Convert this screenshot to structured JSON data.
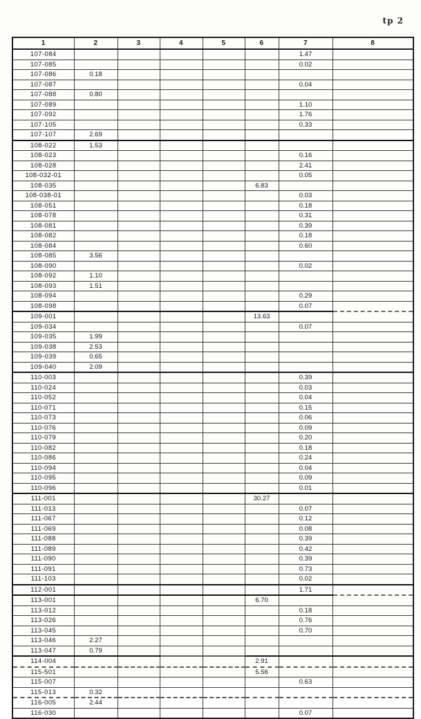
{
  "page": {
    "label": "tp 2"
  },
  "colors": {
    "background": "#ffffff",
    "border_dark": "#1f1f1f",
    "border_light": "#3c3c3c",
    "text": "#171717"
  },
  "table": {
    "headers": [
      "1",
      "2",
      "3",
      "4",
      "5",
      "6",
      "7",
      "8"
    ],
    "rows": [
      {
        "cols": [
          "107-084",
          "",
          "",
          "",
          "",
          "",
          "1.47",
          ""
        ]
      },
      {
        "cols": [
          "107-085",
          "",
          "",
          "",
          "",
          "",
          "0.02",
          ""
        ]
      },
      {
        "cols": [
          "107-086",
          "0.18",
          "",
          "",
          "",
          "",
          "",
          ""
        ]
      },
      {
        "cols": [
          "107-087",
          "",
          "",
          "",
          "",
          "",
          "0.04",
          ""
        ]
      },
      {
        "cols": [
          "107-088",
          "0.80",
          "",
          "",
          "",
          "",
          "",
          ""
        ]
      },
      {
        "cols": [
          "107-089",
          "",
          "",
          "",
          "",
          "",
          "1.10",
          ""
        ]
      },
      {
        "cols": [
          "107-092",
          "",
          "",
          "",
          "",
          "",
          "1.76",
          ""
        ]
      },
      {
        "cols": [
          "107-105",
          "",
          "",
          "",
          "",
          "",
          "0.33",
          ""
        ]
      },
      {
        "cols": [
          "107-107",
          "2.69",
          "",
          "",
          "",
          "",
          "",
          ""
        ]
      },
      {
        "cols": [
          "108-022",
          "1.53",
          "",
          "",
          "",
          "",
          "",
          ""
        ]
      },
      {
        "cols": [
          "108-023",
          "",
          "",
          "",
          "",
          "",
          "0.16",
          ""
        ]
      },
      {
        "cols": [
          "108-028",
          "",
          "",
          "",
          "",
          "",
          "2.41",
          ""
        ]
      },
      {
        "cols": [
          "108-032-01",
          "",
          "",
          "",
          "",
          "",
          "0.05",
          ""
        ]
      },
      {
        "cols": [
          "108-035",
          "",
          "",
          "",
          "",
          "6.83",
          "",
          ""
        ]
      },
      {
        "cols": [
          "108-038-01",
          "",
          "",
          "",
          "",
          "",
          "0.03",
          ""
        ]
      },
      {
        "cols": [
          "108-051",
          "",
          "",
          "",
          "",
          "",
          "0.18",
          ""
        ]
      },
      {
        "cols": [
          "108-078",
          "",
          "",
          "",
          "",
          "",
          "0.31",
          ""
        ]
      },
      {
        "cols": [
          "108-081",
          "",
          "",
          "",
          "",
          "",
          "0.39",
          ""
        ]
      },
      {
        "cols": [
          "108-082",
          "",
          "",
          "",
          "",
          "",
          "0.18",
          ""
        ]
      },
      {
        "cols": [
          "108-084",
          "",
          "",
          "",
          "",
          "",
          "0.60",
          ""
        ]
      },
      {
        "cols": [
          "108-085",
          "3.56",
          "",
          "",
          "",
          "",
          "",
          ""
        ]
      },
      {
        "cols": [
          "108-090",
          "",
          "",
          "",
          "",
          "",
          "0.02",
          ""
        ]
      },
      {
        "cols": [
          "108-092",
          "1.10",
          "",
          "",
          "",
          "",
          "",
          ""
        ]
      },
      {
        "cols": [
          "108-093",
          "1.51",
          "",
          "",
          "",
          "",
          "",
          ""
        ]
      },
      {
        "cols": [
          "108-094",
          "",
          "",
          "",
          "",
          "",
          "0.29",
          ""
        ]
      },
      {
        "cols": [
          "108-098",
          "",
          "",
          "",
          "",
          "",
          "0.07",
          ""
        ]
      },
      {
        "cols": [
          "109-001",
          "",
          "",
          "",
          "",
          "13.63",
          "",
          ""
        ]
      },
      {
        "cols": [
          "109-034",
          "",
          "",
          "",
          "",
          "",
          "0.07",
          ""
        ]
      },
      {
        "cols": [
          "109-035",
          "1.99",
          "",
          "",
          "",
          "",
          "",
          ""
        ]
      },
      {
        "cols": [
          "109-038",
          "2.53",
          "",
          "",
          "",
          "",
          "",
          ""
        ]
      },
      {
        "cols": [
          "109-039",
          "0.65",
          "",
          "",
          "",
          "",
          "",
          ""
        ]
      },
      {
        "cols": [
          "109-040",
          "2.09",
          "",
          "",
          "",
          "",
          "",
          ""
        ]
      },
      {
        "cols": [
          "110-003",
          "",
          "",
          "",
          "",
          "",
          "0.39",
          ""
        ]
      },
      {
        "cols": [
          "110-024",
          "",
          "",
          "",
          "",
          "",
          "0.03",
          ""
        ]
      },
      {
        "cols": [
          "110-052",
          "",
          "",
          "",
          "",
          "",
          "0.04",
          ""
        ]
      },
      {
        "cols": [
          "110-071",
          "",
          "",
          "",
          "",
          "",
          "0.15",
          ""
        ]
      },
      {
        "cols": [
          "110-073",
          "",
          "",
          "",
          "",
          "",
          "0.06",
          ""
        ]
      },
      {
        "cols": [
          "110-076",
          "",
          "",
          "",
          "",
          "",
          "0.09",
          ""
        ]
      },
      {
        "cols": [
          "110-079",
          "",
          "",
          "",
          "",
          "",
          "0.20",
          ""
        ]
      },
      {
        "cols": [
          "110-082",
          "",
          "",
          "",
          "",
          "",
          "0.18",
          ""
        ]
      },
      {
        "cols": [
          "110-086",
          "",
          "",
          "",
          "",
          "",
          "0.24",
          ""
        ]
      },
      {
        "cols": [
          "110-094",
          "",
          "",
          "",
          "",
          "",
          "0.04",
          ""
        ]
      },
      {
        "cols": [
          "110-095",
          "",
          "",
          "",
          "",
          "",
          "0.09",
          ""
        ]
      },
      {
        "cols": [
          "110-096",
          "",
          "",
          "",
          "",
          "",
          "0.01",
          ""
        ]
      },
      {
        "cols": [
          "111-001",
          "",
          "",
          "",
          "",
          "30.27",
          "",
          ""
        ]
      },
      {
        "cols": [
          "111-013",
          "",
          "",
          "",
          "",
          "",
          "0.07",
          ""
        ]
      },
      {
        "cols": [
          "111-067",
          "",
          "",
          "",
          "",
          "",
          "0.12",
          ""
        ]
      },
      {
        "cols": [
          "111-069",
          "",
          "",
          "",
          "",
          "",
          "0.08",
          ""
        ]
      },
      {
        "cols": [
          "111-088",
          "",
          "",
          "",
          "",
          "",
          "0.39",
          ""
        ]
      },
      {
        "cols": [
          "111-089",
          "",
          "",
          "",
          "",
          "",
          "0.42",
          ""
        ]
      },
      {
        "cols": [
          "111-090",
          "",
          "",
          "",
          "",
          "",
          "0.39",
          ""
        ]
      },
      {
        "cols": [
          "111-091",
          "",
          "",
          "",
          "",
          "",
          "0.73",
          ""
        ]
      },
      {
        "cols": [
          "111-103",
          "",
          "",
          "",
          "",
          "",
          "0.02",
          ""
        ]
      },
      {
        "cols": [
          "112-001",
          "",
          "",
          "",
          "",
          "",
          "1.71",
          ""
        ]
      },
      {
        "cols": [
          "113-001",
          "",
          "",
          "",
          "",
          "6.70",
          "",
          ""
        ]
      },
      {
        "cols": [
          "113-012",
          "",
          "",
          "",
          "",
          "",
          "0.18",
          ""
        ]
      },
      {
        "cols": [
          "113-026",
          "",
          "",
          "",
          "",
          "",
          "0.76",
          ""
        ]
      },
      {
        "cols": [
          "113-045",
          "",
          "",
          "",
          "",
          "",
          "0.70",
          ""
        ]
      },
      {
        "cols": [
          "113-046",
          "2.27",
          "",
          "",
          "",
          "",
          "",
          ""
        ]
      },
      {
        "cols": [
          "113-047",
          "0.79",
          "",
          "",
          "",
          "",
          "",
          ""
        ]
      },
      {
        "cols": [
          "114-004",
          "",
          "",
          "",
          "",
          "2.91",
          "",
          ""
        ]
      },
      {
        "cols": [
          "115-501",
          "",
          "",
          "",
          "",
          "5.56",
          "",
          ""
        ]
      },
      {
        "cols": [
          "115-007",
          "",
          "",
          "",
          "",
          "",
          "0.63",
          ""
        ]
      },
      {
        "cols": [
          "115-013",
          "0.32",
          "",
          "",
          "",
          "",
          "",
          ""
        ]
      },
      {
        "cols": [
          "116-005",
          "2.44",
          "",
          "",
          "",
          "",
          "",
          ""
        ]
      },
      {
        "cols": [
          "116-030",
          "",
          "",
          "",
          "",
          "",
          "0.07",
          ""
        ]
      }
    ]
  }
}
